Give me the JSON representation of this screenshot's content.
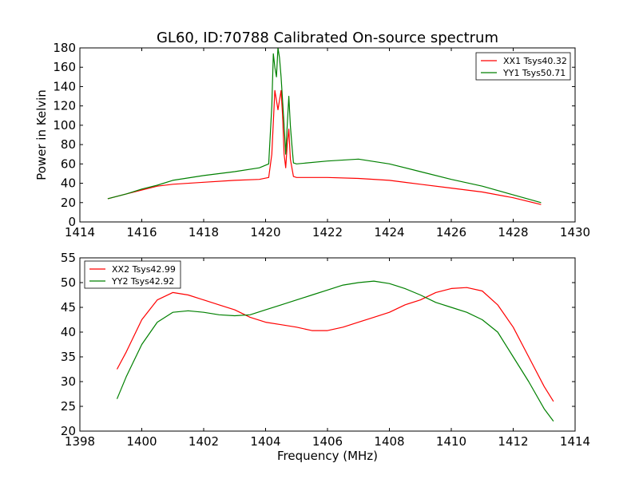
{
  "chart_data": [
    {
      "type": "line",
      "title": "GL60, ID:70788 Calibrated On-source spectrum",
      "xlabel": "",
      "ylabel": "Power in Kelvin",
      "xlim": [
        1414,
        1430
      ],
      "ylim": [
        0,
        180
      ],
      "xticks": [
        "1414",
        "1416",
        "1418",
        "1420",
        "1422",
        "1424",
        "1426",
        "1428",
        "1430"
      ],
      "yticks": [
        "0",
        "20",
        "40",
        "60",
        "80",
        "100",
        "120",
        "140",
        "160",
        "180"
      ],
      "legend_position": "top-right",
      "grid": false,
      "series": [
        {
          "name": "XX1 Tsys40.32",
          "color": "#ff0000",
          "x": [
            1414.9,
            1415.5,
            1416.0,
            1416.5,
            1417.0,
            1418.0,
            1419.0,
            1419.8,
            1420.1,
            1420.2,
            1420.3,
            1420.4,
            1420.5,
            1420.55,
            1420.6,
            1420.65,
            1420.7,
            1420.75,
            1420.8,
            1420.9,
            1421.0,
            1422.0,
            1423.0,
            1424.0,
            1425.0,
            1426.0,
            1427.0,
            1428.0,
            1428.9
          ],
          "y": [
            24,
            29,
            33,
            37,
            39,
            41,
            43,
            44,
            46,
            70,
            136,
            116,
            136,
            110,
            70,
            56,
            80,
            96,
            65,
            47,
            46,
            46,
            45,
            43,
            39,
            35,
            31,
            25,
            18
          ]
        },
        {
          "name": "YY1 Tsys50.71",
          "color": "#008000",
          "x": [
            1414.9,
            1415.5,
            1416.0,
            1416.5,
            1417.0,
            1418.0,
            1419.0,
            1419.8,
            1420.1,
            1420.2,
            1420.25,
            1420.3,
            1420.35,
            1420.4,
            1420.45,
            1420.5,
            1420.6,
            1420.65,
            1420.7,
            1420.75,
            1420.8,
            1420.85,
            1420.9,
            1421.0,
            1422.0,
            1423.0,
            1424.0,
            1425.0,
            1426.0,
            1427.0,
            1428.0,
            1428.9
          ],
          "y": [
            24,
            29,
            34,
            38,
            43,
            48,
            52,
            56,
            60,
            120,
            174,
            160,
            150,
            180,
            170,
            150,
            100,
            70,
            100,
            130,
            100,
            80,
            61,
            60,
            63,
            65,
            60,
            52,
            44,
            37,
            28,
            20
          ]
        }
      ]
    },
    {
      "type": "line",
      "title": "",
      "xlabel": "Frequency (MHz)",
      "ylabel": "",
      "xlim": [
        1398,
        1414
      ],
      "ylim": [
        20,
        55
      ],
      "xticks": [
        "1398",
        "1400",
        "1402",
        "1404",
        "1406",
        "1408",
        "1410",
        "1412",
        "1414"
      ],
      "yticks": [
        "20",
        "25",
        "30",
        "35",
        "40",
        "45",
        "50",
        "55"
      ],
      "legend_position": "top-left",
      "grid": false,
      "series": [
        {
          "name": "XX2 Tsys42.99",
          "color": "#ff0000",
          "x": [
            1399.2,
            1399.5,
            1400.0,
            1400.5,
            1401.0,
            1401.5,
            1402.0,
            1402.5,
            1403.0,
            1403.5,
            1404.0,
            1404.5,
            1405.0,
            1405.5,
            1406.0,
            1406.5,
            1407.0,
            1407.5,
            1408.0,
            1408.5,
            1409.0,
            1409.5,
            1410.0,
            1410.5,
            1411.0,
            1411.5,
            1412.0,
            1412.5,
            1413.0,
            1413.3
          ],
          "y": [
            32.5,
            36,
            42.5,
            46.5,
            48,
            47.5,
            46.5,
            45.5,
            44.5,
            43,
            42,
            41.5,
            41,
            40.3,
            40.3,
            41,
            42,
            43,
            44,
            45.5,
            46.5,
            48,
            48.8,
            49,
            48.3,
            45.5,
            41,
            35,
            29,
            26
          ]
        },
        {
          "name": "YY2 Tsys42.92",
          "color": "#008000",
          "x": [
            1399.2,
            1399.5,
            1400.0,
            1400.5,
            1401.0,
            1401.5,
            1402.0,
            1402.5,
            1403.0,
            1403.5,
            1404.0,
            1404.5,
            1405.0,
            1405.5,
            1406.0,
            1406.5,
            1407.0,
            1407.5,
            1408.0,
            1408.5,
            1409.0,
            1409.5,
            1410.0,
            1410.5,
            1411.0,
            1411.5,
            1412.0,
            1412.5,
            1413.0,
            1413.3
          ],
          "y": [
            26.5,
            31,
            37.5,
            42,
            44,
            44.3,
            44,
            43.5,
            43.3,
            43.5,
            44.5,
            45.5,
            46.5,
            47.5,
            48.5,
            49.5,
            50,
            50.3,
            49.8,
            48.8,
            47.5,
            46,
            45,
            44,
            42.5,
            40,
            35,
            30,
            24.5,
            22
          ]
        }
      ]
    }
  ]
}
